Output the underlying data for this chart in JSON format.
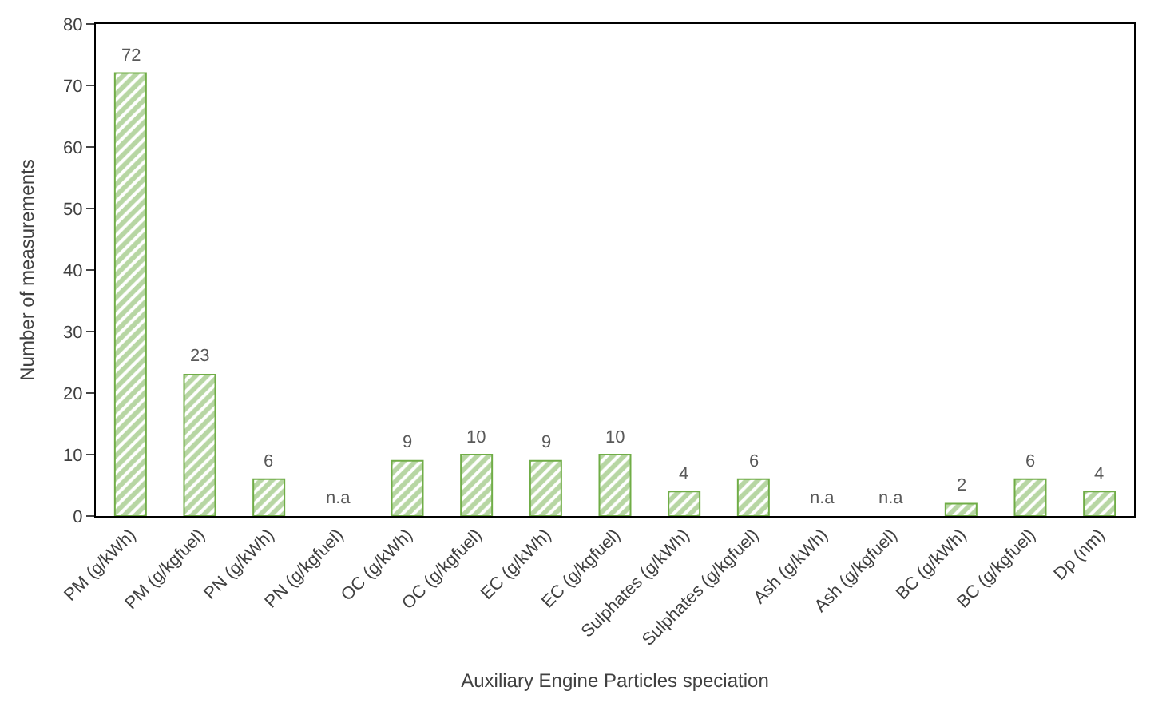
{
  "chart_data": {
    "type": "bar",
    "xlabel": "Auxiliary Engine Particles speciation",
    "ylabel": "Number of measurements",
    "categories": [
      "PM (g/kWh)",
      "PM (g/kgfuel)",
      "PN (g/kWh)",
      "PN (g/kgfuel)",
      "OC (g/kWh)",
      "OC (g/kgfuel)",
      "EC (g/kWh)",
      "EC (g/kgfuel)",
      "Sulphates (g/kWh)",
      "Sulphates (g/kgfuel)",
      "Ash (g/kWh)",
      "Ash (g/kgfuel)",
      "BC (g/kWh)",
      "BC (g/kgfuel)",
      "Dp (nm)"
    ],
    "values": [
      72,
      23,
      6,
      null,
      9,
      10,
      9,
      10,
      4,
      6,
      null,
      null,
      2,
      6,
      4
    ],
    "value_labels": [
      "72",
      "23",
      "6",
      "n.a",
      "9",
      "10",
      "9",
      "10",
      "4",
      "6",
      "n.a",
      "n.a",
      "2",
      "6",
      "4"
    ],
    "color": "#70ad47",
    "ylim": [
      0,
      80
    ],
    "yticks": [
      0,
      10,
      20,
      30,
      40,
      50,
      60,
      70,
      80
    ],
    "legend": false
  }
}
